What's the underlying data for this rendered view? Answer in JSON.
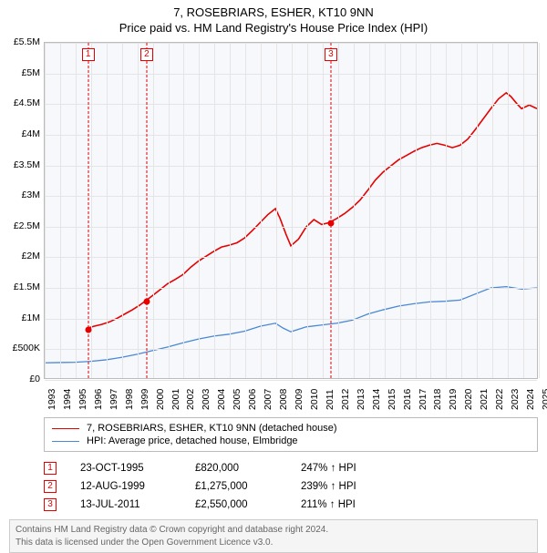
{
  "title": {
    "line1": "7, ROSEBRIARS, ESHER, KT10 9NN",
    "line2": "Price paid vs. HM Land Registry's House Price Index (HPI)"
  },
  "chart": {
    "type": "line",
    "background_color": "#f6f8fb",
    "grid_color": "#e5e5e5",
    "axis_color": "#bbbbbb",
    "title_fontsize": 13,
    "label_fontsize": 10.5,
    "y": {
      "min": 0,
      "max": 5500000,
      "ticks": [
        0,
        500000,
        1000000,
        1500000,
        2000000,
        2500000,
        3000000,
        3500000,
        4000000,
        4500000,
        5000000,
        5500000
      ],
      "tick_labels": [
        "£0",
        "£500K",
        "£1M",
        "£1.5M",
        "£2M",
        "£2.5M",
        "£3M",
        "£3.5M",
        "£4M",
        "£4.5M",
        "£5M",
        "£5.5M"
      ]
    },
    "x": {
      "min": 1993,
      "max": 2025,
      "ticks": [
        1993,
        1994,
        1995,
        1996,
        1997,
        1998,
        1999,
        2000,
        2001,
        2002,
        2003,
        2004,
        2005,
        2006,
        2007,
        2008,
        2009,
        2010,
        2011,
        2012,
        2013,
        2014,
        2015,
        2016,
        2017,
        2018,
        2019,
        2020,
        2021,
        2022,
        2023,
        2024,
        2025
      ]
    },
    "series": [
      {
        "name": "property",
        "label": "7, ROSEBRIARS, ESHER, KT10 9NN (detached house)",
        "color": "#e60000",
        "line_width": 1.6,
        "points": [
          [
            1995.8,
            820000
          ],
          [
            1996.2,
            850000
          ],
          [
            1996.7,
            880000
          ],
          [
            1997.2,
            920000
          ],
          [
            1997.7,
            980000
          ],
          [
            1998.2,
            1050000
          ],
          [
            1998.7,
            1120000
          ],
          [
            1999.2,
            1200000
          ],
          [
            1999.6,
            1275000
          ],
          [
            2000.0,
            1350000
          ],
          [
            2000.5,
            1450000
          ],
          [
            2001.0,
            1550000
          ],
          [
            2001.5,
            1620000
          ],
          [
            2002.0,
            1700000
          ],
          [
            2002.5,
            1820000
          ],
          [
            2003.0,
            1920000
          ],
          [
            2003.5,
            2000000
          ],
          [
            2004.0,
            2080000
          ],
          [
            2004.5,
            2150000
          ],
          [
            2005.0,
            2180000
          ],
          [
            2005.5,
            2220000
          ],
          [
            2006.0,
            2300000
          ],
          [
            2006.5,
            2420000
          ],
          [
            2007.0,
            2550000
          ],
          [
            2007.5,
            2680000
          ],
          [
            2008.0,
            2780000
          ],
          [
            2008.3,
            2620000
          ],
          [
            2008.7,
            2350000
          ],
          [
            2009.0,
            2170000
          ],
          [
            2009.5,
            2280000
          ],
          [
            2010.0,
            2480000
          ],
          [
            2010.5,
            2600000
          ],
          [
            2011.0,
            2520000
          ],
          [
            2011.5,
            2550000
          ],
          [
            2012.0,
            2620000
          ],
          [
            2012.5,
            2700000
          ],
          [
            2013.0,
            2800000
          ],
          [
            2013.5,
            2920000
          ],
          [
            2014.0,
            3080000
          ],
          [
            2014.5,
            3250000
          ],
          [
            2015.0,
            3380000
          ],
          [
            2015.5,
            3480000
          ],
          [
            2016.0,
            3580000
          ],
          [
            2016.5,
            3650000
          ],
          [
            2017.0,
            3720000
          ],
          [
            2017.5,
            3780000
          ],
          [
            2018.0,
            3820000
          ],
          [
            2018.5,
            3850000
          ],
          [
            2019.0,
            3820000
          ],
          [
            2019.5,
            3780000
          ],
          [
            2020.0,
            3820000
          ],
          [
            2020.5,
            3920000
          ],
          [
            2021.0,
            4080000
          ],
          [
            2021.5,
            4250000
          ],
          [
            2022.0,
            4420000
          ],
          [
            2022.5,
            4580000
          ],
          [
            2023.0,
            4680000
          ],
          [
            2023.3,
            4620000
          ],
          [
            2023.7,
            4500000
          ],
          [
            2024.0,
            4420000
          ],
          [
            2024.5,
            4480000
          ],
          [
            2025.0,
            4420000
          ]
        ]
      },
      {
        "name": "hpi",
        "label": "HPI: Average price, detached house, Elmbridge",
        "color": "#4a88d6",
        "line_width": 1.3,
        "points": [
          [
            1993.0,
            250000
          ],
          [
            1994.0,
            255000
          ],
          [
            1995.0,
            260000
          ],
          [
            1996.0,
            275000
          ],
          [
            1997.0,
            300000
          ],
          [
            1998.0,
            340000
          ],
          [
            1999.0,
            390000
          ],
          [
            2000.0,
            450000
          ],
          [
            2001.0,
            510000
          ],
          [
            2002.0,
            580000
          ],
          [
            2003.0,
            640000
          ],
          [
            2004.0,
            690000
          ],
          [
            2005.0,
            720000
          ],
          [
            2006.0,
            770000
          ],
          [
            2007.0,
            850000
          ],
          [
            2008.0,
            900000
          ],
          [
            2008.5,
            820000
          ],
          [
            2009.0,
            760000
          ],
          [
            2010.0,
            840000
          ],
          [
            2011.0,
            870000
          ],
          [
            2012.0,
            900000
          ],
          [
            2013.0,
            950000
          ],
          [
            2014.0,
            1050000
          ],
          [
            2015.0,
            1120000
          ],
          [
            2016.0,
            1180000
          ],
          [
            2017.0,
            1220000
          ],
          [
            2018.0,
            1250000
          ],
          [
            2019.0,
            1260000
          ],
          [
            2020.0,
            1280000
          ],
          [
            2021.0,
            1380000
          ],
          [
            2022.0,
            1480000
          ],
          [
            2023.0,
            1500000
          ],
          [
            2024.0,
            1460000
          ],
          [
            2025.0,
            1480000
          ]
        ]
      }
    ],
    "sales": [
      {
        "n": "1",
        "year": 1995.81,
        "price": 820000,
        "date": "23-OCT-1995",
        "price_label": "£820,000",
        "pct": "247% ↑ HPI"
      },
      {
        "n": "2",
        "year": 1999.61,
        "price": 1275000,
        "date": "12-AUG-1999",
        "price_label": "£1,275,000",
        "pct": "239% ↑ HPI"
      },
      {
        "n": "3",
        "year": 2011.53,
        "price": 2550000,
        "date": "13-JUL-2011",
        "price_label": "£2,550,000",
        "pct": "211% ↑ HPI"
      }
    ],
    "sale_marker_color": "#e60000",
    "sale_box_border": "#e60000"
  },
  "legend": {
    "items": [
      {
        "color": "#e60000",
        "label": "7, ROSEBRIARS, ESHER, KT10 9NN (detached house)"
      },
      {
        "color": "#4a88d6",
        "label": "HPI: Average price, detached house, Elmbridge"
      }
    ]
  },
  "footer": {
    "line1": "Contains HM Land Registry data © Crown copyright and database right 2024.",
    "line2": "This data is licensed under the Open Government Licence v3.0."
  }
}
